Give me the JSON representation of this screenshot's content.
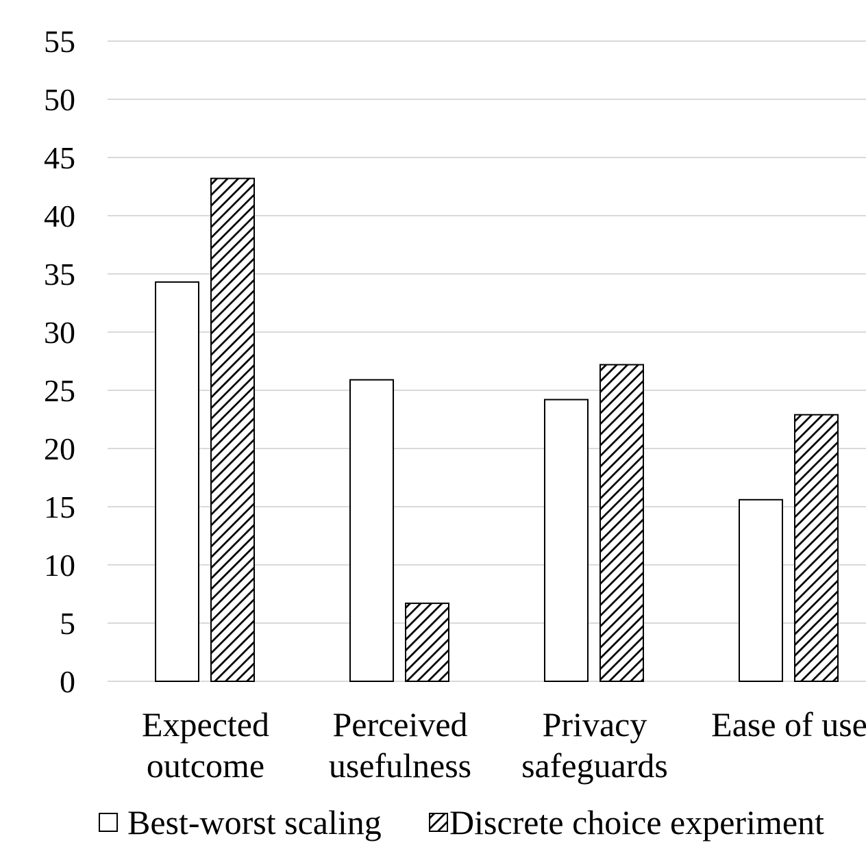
{
  "chart_data": {
    "type": "bar",
    "title": "",
    "xlabel": "",
    "ylabel": "",
    "ylim": [
      0,
      55
    ],
    "y_ticks": [
      "0",
      "5",
      "10",
      "15",
      "20",
      "25",
      "30",
      "35",
      "40",
      "45",
      "50",
      "55"
    ],
    "categories": [
      [
        "Expected",
        "outcome"
      ],
      [
        "Perceived",
        "usefulness"
      ],
      [
        "Privacy",
        "safeguards"
      ],
      [
        "Ease of use"
      ]
    ],
    "series": [
      {
        "name": "Best-worst scaling",
        "fill": "none",
        "values": [
          34.3,
          25.9,
          24.2,
          15.6
        ]
      },
      {
        "name": "Discrete choice experiment",
        "fill": "diagonal-hatch",
        "values": [
          43.2,
          6.7,
          27.2,
          22.9
        ]
      }
    ],
    "grid": true,
    "legend_position": "bottom",
    "colors": {
      "bar_edge": "#000000",
      "bar_fill": "#ffffff",
      "grid": "#d9d9d9",
      "text": "#000000"
    }
  }
}
